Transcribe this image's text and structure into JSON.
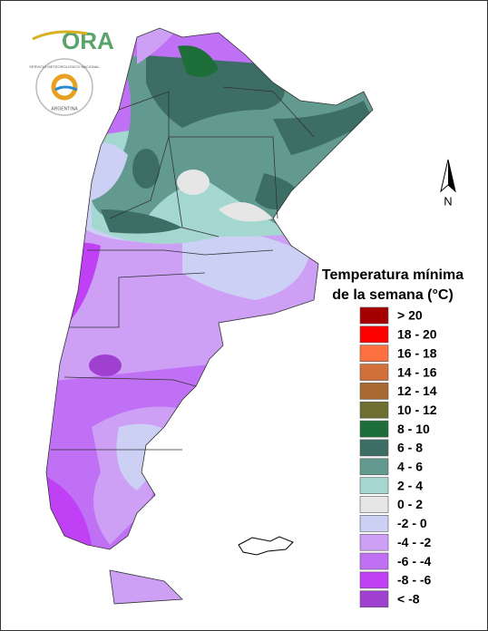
{
  "logo": {
    "title": "ORA",
    "agency": "SERVICIO METEOROLOGICO NACIONAL",
    "country": "ARGENTINA"
  },
  "north": "N",
  "legend": {
    "title": [
      "Temperatura mínima",
      "de la semana (°C)"
    ],
    "items": [
      {
        "label": "> 20",
        "color": "#a50000"
      },
      {
        "label": "18 - 20",
        "color": "#ff0000"
      },
      {
        "label": "16 - 18",
        "color": "#ff7040"
      },
      {
        "label": "14 - 16",
        "color": "#d2703a"
      },
      {
        "label": "12 - 14",
        "color": "#a86a30"
      },
      {
        "label": "10 - 12",
        "color": "#6e6e30"
      },
      {
        "label": "8 - 10",
        "color": "#1e6e3a"
      },
      {
        "label": "6 - 8",
        "color": "#3c6e66"
      },
      {
        "label": "4 - 6",
        "color": "#629a90"
      },
      {
        "label": "2 - 4",
        "color": "#a4d7cf"
      },
      {
        "label": "0 - 2",
        "color": "#e6e6e6"
      },
      {
        "label": "-2 - 0",
        "color": "#ccd0f5"
      },
      {
        "label": "-4 - -2",
        "color": "#cda0f5"
      },
      {
        "label": "-6 - -4",
        "color": "#c070f5"
      },
      {
        "label": "-8 - -6",
        "color": "#c040f5"
      },
      {
        "label": "< -8",
        "color": "#a040d0"
      }
    ]
  }
}
